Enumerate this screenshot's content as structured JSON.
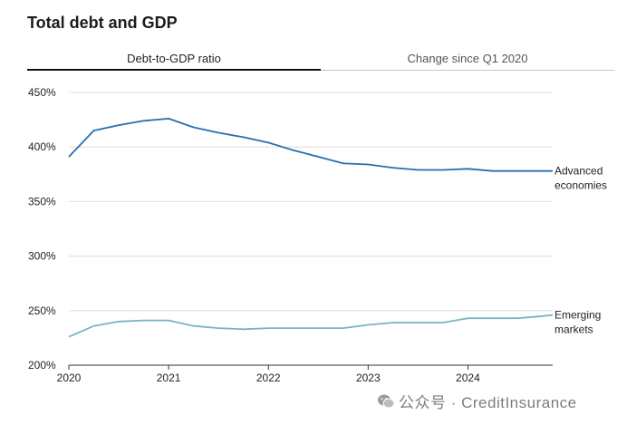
{
  "title": "Total debt and GDP",
  "tabs": [
    {
      "label": "Debt-to-GDP ratio",
      "active": true
    },
    {
      "label": "Change since Q1 2020",
      "active": false
    }
  ],
  "watermark": {
    "text": "公众号 · CreditInsurance"
  },
  "chart_data": {
    "type": "line",
    "title": "",
    "xlabel": "",
    "ylabel": "",
    "ylim": [
      200,
      450
    ],
    "yticks": [
      200,
      250,
      300,
      350,
      400,
      450
    ],
    "ytick_labels": [
      "200%",
      "250%",
      "300%",
      "350%",
      "400%",
      "450%"
    ],
    "xlim": [
      2020.0,
      2024.85
    ],
    "xticks": [
      2020,
      2021,
      2022,
      2023,
      2024
    ],
    "xtick_labels": [
      "2020",
      "2021",
      "2022",
      "2023",
      "2024"
    ],
    "grid": "horizontal",
    "series_label_placement": "right-end",
    "series": [
      {
        "name": "Advanced economies",
        "label_lines": [
          "Advanced",
          "economies"
        ],
        "color": "#2a6db1",
        "x": [
          2020.0,
          2020.25,
          2020.5,
          2020.75,
          2021.0,
          2021.25,
          2021.5,
          2021.75,
          2022.0,
          2022.25,
          2022.5,
          2022.75,
          2023.0,
          2023.25,
          2023.5,
          2023.75,
          2024.0,
          2024.25,
          2024.5,
          2024.75,
          2024.85
        ],
        "values": [
          391,
          415,
          420,
          424,
          426,
          418,
          413,
          409,
          404,
          397,
          391,
          385,
          384,
          381,
          379,
          379,
          380,
          378,
          378,
          378,
          378
        ]
      },
      {
        "name": "Emerging markets",
        "label_lines": [
          "Emerging",
          "markets"
        ],
        "color": "#7ab3c4",
        "x": [
          2020.0,
          2020.25,
          2020.5,
          2020.75,
          2021.0,
          2021.25,
          2021.5,
          2021.75,
          2022.0,
          2022.25,
          2022.5,
          2022.75,
          2023.0,
          2023.25,
          2023.5,
          2023.75,
          2024.0,
          2024.25,
          2024.5,
          2024.75,
          2024.85
        ],
        "values": [
          226,
          236,
          240,
          241,
          241,
          236,
          234,
          233,
          234,
          234,
          234,
          234,
          237,
          239,
          239,
          239,
          243,
          243,
          243,
          245,
          246
        ]
      }
    ]
  }
}
